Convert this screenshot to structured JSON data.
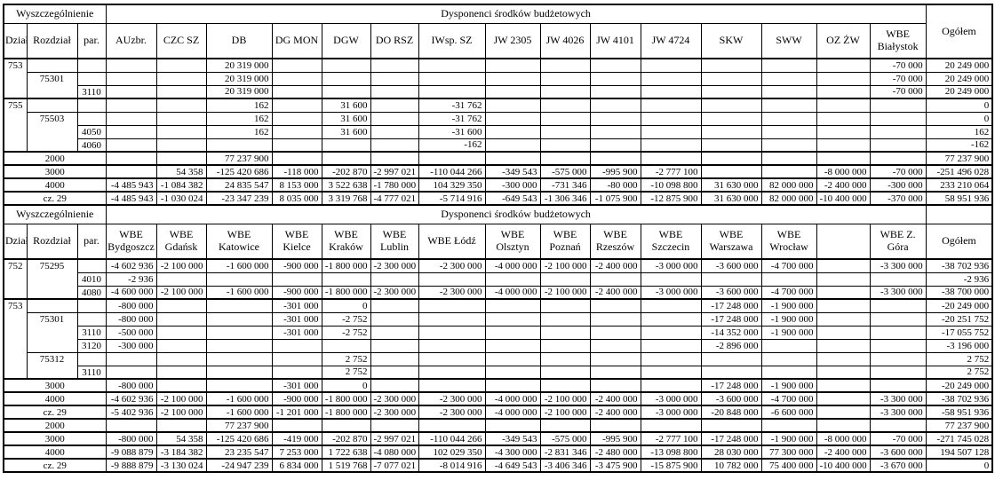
{
  "labels": {
    "wyszczegolnienie": "Wyszczególnienie",
    "dysponenci": "Dysponenci środków budżetowych",
    "dzial": "Dział",
    "rozdzial": "Rozdział",
    "par": "par.",
    "ogolem": "Ogółem"
  },
  "sections": [
    {
      "ogolem_rowspan": true,
      "columns": [
        "AUzbr.",
        "CZC SZ",
        "DB",
        "DG MON",
        "DGW",
        "DO RSZ",
        "IWsp. SZ",
        "JW 2305",
        "JW 4026",
        "JW 4101",
        "JW 4724",
        "SKW",
        "SWW",
        "OZ ŻW",
        "WBE Białystok"
      ],
      "rows": [
        {
          "gs": true,
          "lead": [
            {
              "t": "753",
              "rs": 3
            },
            {
              "t": ""
            },
            {
              "t": ""
            }
          ],
          "cells": [
            "",
            "",
            "20 319 000",
            "",
            "",
            "",
            "",
            "",
            "",
            "",
            "",
            "",
            "",
            "",
            "-70 000",
            "20 249 000"
          ]
        },
        {
          "lead": [
            {
              "t": "75301",
              "rs": 2
            },
            {
              "t": ""
            }
          ],
          "cells": [
            "",
            "",
            "20 319 000",
            "",
            "",
            "",
            "",
            "",
            "",
            "",
            "",
            "",
            "",
            "",
            "-70 000",
            "20 249 000"
          ]
        },
        {
          "lead": [
            {
              "t": "3110"
            }
          ],
          "cells": [
            "",
            "",
            "20 319 000",
            "",
            "",
            "",
            "",
            "",
            "",
            "",
            "",
            "",
            "",
            "",
            "-70 000",
            "20 249 000"
          ]
        },
        {
          "gs": true,
          "lead": [
            {
              "t": "755",
              "rs": 4
            },
            {
              "t": ""
            },
            {
              "t": ""
            }
          ],
          "cells": [
            "",
            "",
            "162",
            "",
            "31 600",
            "",
            "-31 762",
            "",
            "",
            "",
            "",
            "",
            "",
            "",
            "",
            "0"
          ]
        },
        {
          "lead": [
            {
              "t": "75503",
              "rs": 3
            },
            {
              "t": ""
            }
          ],
          "cells": [
            "",
            "",
            "162",
            "",
            "31 600",
            "",
            "-31 762",
            "",
            "",
            "",
            "",
            "",
            "",
            "",
            "",
            "0"
          ]
        },
        {
          "lead": [
            {
              "t": "4050"
            }
          ],
          "cells": [
            "",
            "",
            "162",
            "",
            "31 600",
            "",
            "-31 600",
            "",
            "",
            "",
            "",
            "",
            "",
            "",
            "",
            "162"
          ]
        },
        {
          "lead": [
            {
              "t": "4060"
            }
          ],
          "cells": [
            "",
            "",
            "",
            "",
            "",
            "",
            "-162",
            "",
            "",
            "",
            "",
            "",
            "",
            "",
            "",
            "-162"
          ]
        },
        {
          "gs": true,
          "lead": [
            {
              "t": "2000",
              "cs": 3
            }
          ],
          "cells": [
            "",
            "",
            "77 237 900",
            "",
            "",
            "",
            "",
            "",
            "",
            "",
            "",
            "",
            "",
            "",
            "",
            "77 237 900"
          ]
        },
        {
          "gs": true,
          "lead": [
            {
              "t": "3000",
              "cs": 3
            }
          ],
          "cells": [
            "",
            "54 358",
            "-125 420 686",
            "-118 000",
            "-202 870",
            "-2 997 021",
            "-110 044 266",
            "-349 543",
            "-575 000",
            "-995 900",
            "-2 777 100",
            "",
            "",
            "-8 000 000",
            "-70 000",
            "-251 496 028"
          ]
        },
        {
          "gs": true,
          "lead": [
            {
              "t": "4000",
              "cs": 3
            }
          ],
          "cells": [
            "-4 485 943",
            "-1 084 382",
            "24 835 547",
            "8 153 000",
            "3 522 638",
            "-1 780 000",
            "104 329 350",
            "-300 000",
            "-731 346",
            "-80 000",
            "-10 098 800",
            "31 630 000",
            "82 000 000",
            "-2 400 000",
            "-300 000",
            "233 210 064"
          ]
        },
        {
          "gs": true,
          "lead": [
            {
              "t": "cz. 29",
              "cs": 3
            }
          ],
          "cells": [
            "-4 485 943",
            "-1 030 024",
            "-23 347 239",
            "8 035 000",
            "3 319 768",
            "-4 777 021",
            "-5 714 916",
            "-649 543",
            "-1 306 346",
            "-1 075 900",
            "-12 875 900",
            "31 630 000",
            "82 000 000",
            "-10 400 000",
            "-370 000",
            "58 951 936"
          ]
        }
      ]
    },
    {
      "ogolem_rowspan": false,
      "columns": [
        "WBE Bydgoszcz",
        "WBE Gdańsk",
        "WBE Katowice",
        "WBE Kielce",
        "WBE Kraków",
        "WBE Lublin",
        "WBE Łódź",
        "WBE Olsztyn",
        "WBE Poznań",
        "WBE Rzeszów",
        "WBE Szczecin",
        "WBE Warszawa",
        "WBE Wrocław",
        "",
        "WBE Z. Góra"
      ],
      "rows": [
        {
          "gs": true,
          "lead": [
            {
              "t": "752",
              "rs": 3
            },
            {
              "t": "75295",
              "rs": 3
            },
            {
              "t": ""
            }
          ],
          "cells": [
            "-4 602 936",
            "-2 100 000",
            "-1 600 000",
            "-900 000",
            "-1 800 000",
            "-2 300 000",
            "-2 300 000",
            "-4 000 000",
            "-2 100 000",
            "-2 400 000",
            "-3 000 000",
            "-3 600 000",
            "-4 700 000",
            "",
            "-3 300 000",
            "-38 702 936"
          ]
        },
        {
          "lead": [
            {
              "t": "4010"
            }
          ],
          "cells": [
            "-2 936",
            "",
            "",
            "",
            "",
            "",
            "",
            "",
            "",
            "",
            "",
            "",
            "",
            "",
            "",
            "-2 936"
          ]
        },
        {
          "lead": [
            {
              "t": "4080"
            }
          ],
          "cells": [
            "-4 600 000",
            "-2 100 000",
            "-1 600 000",
            "-900 000",
            "-1 800 000",
            "-2 300 000",
            "-2 300 000",
            "-4 000 000",
            "-2 100 000",
            "-2 400 000",
            "-3 000 000",
            "-3 600 000",
            "-4 700 000",
            "",
            "-3 300 000",
            "-38 700 000"
          ]
        },
        {
          "gs": true,
          "lead": [
            {
              "t": "753",
              "rs": 6
            },
            {
              "t": ""
            },
            {
              "t": ""
            }
          ],
          "cells": [
            "-800 000",
            "",
            "",
            "-301 000",
            "0",
            "",
            "",
            "",
            "",
            "",
            "",
            "-17 248 000",
            "-1 900 000",
            "",
            "",
            "-20 249 000"
          ]
        },
        {
          "lead": [
            {
              "t": "75301",
              "rs": 3
            },
            {
              "t": ""
            }
          ],
          "cells": [
            "-800 000",
            "",
            "",
            "-301 000",
            "-2 752",
            "",
            "",
            "",
            "",
            "",
            "",
            "-17 248 000",
            "-1 900 000",
            "",
            "",
            "-20 251 752"
          ]
        },
        {
          "lead": [
            {
              "t": "3110"
            }
          ],
          "cells": [
            "-500 000",
            "",
            "",
            "-301 000",
            "-2 752",
            "",
            "",
            "",
            "",
            "",
            "",
            "-14 352 000",
            "-1 900 000",
            "",
            "",
            "-17 055 752"
          ]
        },
        {
          "lead": [
            {
              "t": "3120"
            }
          ],
          "cells": [
            "-300 000",
            "",
            "",
            "",
            "",
            "",
            "",
            "",
            "",
            "",
            "",
            "-2 896 000",
            "",
            "",
            "",
            "-3 196 000"
          ]
        },
        {
          "lead": [
            {
              "t": "75312",
              "rs": 2
            },
            {
              "t": ""
            }
          ],
          "cells": [
            "",
            "",
            "",
            "",
            "2 752",
            "",
            "",
            "",
            "",
            "",
            "",
            "",
            "",
            "",
            "",
            "2 752"
          ]
        },
        {
          "lead": [
            {
              "t": "3110"
            }
          ],
          "cells": [
            "",
            "",
            "",
            "",
            "2 752",
            "",
            "",
            "",
            "",
            "",
            "",
            "",
            "",
            "",
            "",
            "2 752"
          ]
        },
        {
          "gs": true,
          "lead": [
            {
              "t": "3000",
              "cs": 3
            }
          ],
          "cells": [
            "-800 000",
            "",
            "",
            "-301 000",
            "0",
            "",
            "",
            "",
            "",
            "",
            "",
            "-17 248 000",
            "-1 900 000",
            "",
            "",
            "-20 249 000"
          ]
        },
        {
          "gs": true,
          "lead": [
            {
              "t": "4000",
              "cs": 3
            }
          ],
          "cells": [
            "-4 602 936",
            "-2 100 000",
            "-1 600 000",
            "-900 000",
            "-1 800 000",
            "-2 300 000",
            "-2 300 000",
            "-4 000 000",
            "-2 100 000",
            "-2 400 000",
            "-3 000 000",
            "-3 600 000",
            "-4 700 000",
            "",
            "-3 300 000",
            "-38 702 936"
          ]
        },
        {
          "gs": true,
          "lead": [
            {
              "t": "cz. 29",
              "cs": 3
            }
          ],
          "cells": [
            "-5 402 936",
            "-2 100 000",
            "-1 600 000",
            "-1 201 000",
            "-1 800 000",
            "-2 300 000",
            "-2 300 000",
            "-4 000 000",
            "-2 100 000",
            "-2 400 000",
            "-3 000 000",
            "-20 848 000",
            "-6 600 000",
            "",
            "-3 300 000",
            "-58 951 936"
          ]
        },
        {
          "gs": true,
          "lead": [
            {
              "t": "2000",
              "cs": 3
            }
          ],
          "cells": [
            "",
            "",
            "77 237 900",
            "",
            "",
            "",
            "",
            "",
            "",
            "",
            "",
            "",
            "",
            "",
            "",
            "77 237 900"
          ]
        },
        {
          "gs": true,
          "lead": [
            {
              "t": "3000",
              "cs": 3
            }
          ],
          "cells": [
            "-800 000",
            "54 358",
            "-125 420 686",
            "-419 000",
            "-202 870",
            "-2 997 021",
            "-110 044 266",
            "-349 543",
            "-575 000",
            "-995 900",
            "-2 777 100",
            "-17 248 000",
            "-1 900 000",
            "-8 000 000",
            "-70 000",
            "-271 745 028"
          ]
        },
        {
          "gs": true,
          "lead": [
            {
              "t": "4000",
              "cs": 3
            }
          ],
          "cells": [
            "-9 088 879",
            "-3 184 382",
            "23 235 547",
            "7 253 000",
            "1 722 638",
            "-4 080 000",
            "102 029 350",
            "-4 300 000",
            "-2 831 346",
            "-2 480 000",
            "-13 098 800",
            "28 030 000",
            "77 300 000",
            "-2 400 000",
            "-3 600 000",
            "194 507 128"
          ]
        },
        {
          "gs": true,
          "lead": [
            {
              "t": "cz. 29",
              "cs": 3
            }
          ],
          "cells": [
            "-9 888 879",
            "-3 130 024",
            "-24 947 239",
            "6 834 000",
            "1 519 768",
            "-7 077 021",
            "-8 014 916",
            "-4 649 543",
            "-3 406 346",
            "-3 475 900",
            "-15 875 900",
            "10 782 000",
            "75 400 000",
            "-10 400 000",
            "-3 670 000",
            "0"
          ]
        }
      ]
    }
  ]
}
